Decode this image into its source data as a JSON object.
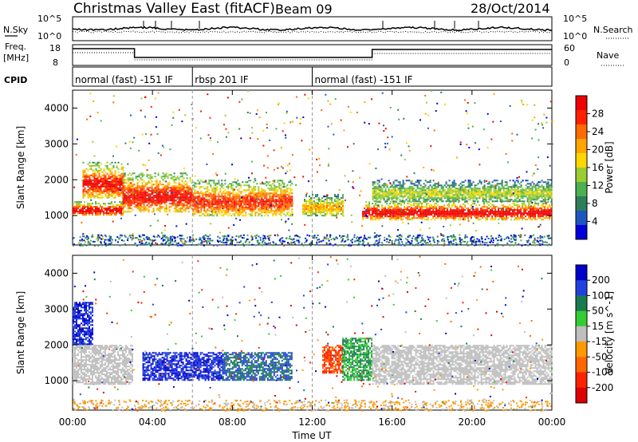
{
  "header": {
    "title": "Christmas Valley East (fitACF)",
    "beam": "Beam 09",
    "date": "28/Oct/2014"
  },
  "noise_panel": {
    "left_label": "N.Sky",
    "right_label": "N.Search",
    "left_ticks": [
      "10^5",
      "10^0"
    ],
    "right_ticks": [
      "10^5",
      "10^0"
    ]
  },
  "freq_panel": {
    "left_label_1": "Freq.",
    "left_label_2": "[MHz]",
    "right_label": "Nave",
    "left_ticks": [
      "18",
      "8"
    ],
    "right_ticks": [
      "60",
      "0"
    ]
  },
  "cpid_panel": {
    "label": "CPID",
    "segments": [
      {
        "label": "normal (fast) -151 IF",
        "start_hour": 0,
        "end_hour": 6
      },
      {
        "label": "rbsp 201 IF",
        "start_hour": 6,
        "end_hour": 12
      },
      {
        "label": "normal (fast) -151 IF",
        "start_hour": 12,
        "end_hour": 24
      }
    ]
  },
  "power_panel": {
    "ylabel": "Slant Range [km]",
    "yticks": [
      "4000",
      "3000",
      "2000",
      "1000"
    ],
    "colorbar_label": "Power [dB]",
    "colorbar_ticks": [
      "28",
      "24",
      "20",
      "16",
      "12",
      "8",
      "4"
    ],
    "colors": [
      "#0000dd",
      "#1f57c0",
      "#2e7d5a",
      "#4caf50",
      "#9acd32",
      "#ffd700",
      "#ffa500",
      "#ff6a00",
      "#ff2000",
      "#ee0000"
    ]
  },
  "velocity_panel": {
    "ylabel": "Slant Range [km]",
    "yticks": [
      "4000",
      "3000",
      "2000",
      "1000"
    ],
    "colorbar_label": "Velocity [m s^-1]",
    "colorbar_ticks": [
      "200",
      "100",
      "50",
      "15",
      "-15",
      "-50",
      "-100",
      "-200"
    ],
    "colors": [
      "#0000cc",
      "#2040e0",
      "#1a7a50",
      "#33cc33",
      "#bebebe",
      "#ff9900",
      "#ff6600",
      "#ff2200",
      "#dd0000"
    ]
  },
  "x_axis": {
    "label": "Time UT",
    "ticks": [
      "00:00",
      "04:00",
      "08:00",
      "12:00",
      "16:00",
      "20:00",
      "00:00"
    ]
  },
  "chart_data": {
    "type": "heatmap",
    "title": "Christmas Valley East (fitACF)",
    "xlabel": "Time UT",
    "ylabel": "Slant Range [km]",
    "xlim_hours": [
      0,
      24
    ],
    "ylim_km": [
      180,
      4500
    ],
    "power_bands": [
      {
        "start_hour": 0.0,
        "end_hour": 2.5,
        "range_km": [
          1000,
          1400
        ],
        "power_db": 28
      },
      {
        "start_hour": 0.5,
        "end_hour": 2.5,
        "range_km": [
          1500,
          2500
        ],
        "power_db": 26
      },
      {
        "start_hour": 2.5,
        "end_hour": 6.0,
        "range_km": [
          1100,
          2200
        ],
        "power_db": 26
      },
      {
        "start_hour": 6.0,
        "end_hour": 11.0,
        "range_km": [
          1000,
          2000
        ],
        "power_db": 24
      },
      {
        "start_hour": 11.5,
        "end_hour": 13.5,
        "range_km": [
          1000,
          1600
        ],
        "power_db": 18
      },
      {
        "start_hour": 14.5,
        "end_hour": 24.0,
        "range_km": [
          900,
          1400
        ],
        "power_db": 28
      },
      {
        "start_hour": 15.0,
        "end_hour": 24.0,
        "range_km": [
          1400,
          2000
        ],
        "power_db": 14
      }
    ],
    "velocity_bands": [
      {
        "start_hour": 0.0,
        "end_hour": 1.0,
        "range_km": [
          2000,
          3200
        ],
        "velocity": 200
      },
      {
        "start_hour": 0.0,
        "end_hour": 3.0,
        "range_km": [
          900,
          2000
        ],
        "velocity": 0
      },
      {
        "start_hour": 3.5,
        "end_hour": 7.5,
        "range_km": [
          1000,
          1800
        ],
        "velocity": 200
      },
      {
        "start_hour": 7.5,
        "end_hour": 11.0,
        "range_km": [
          1000,
          1800
        ],
        "velocity": 100
      },
      {
        "start_hour": 12.5,
        "end_hour": 13.5,
        "range_km": [
          1200,
          2000
        ],
        "velocity": -100
      },
      {
        "start_hour": 13.5,
        "end_hour": 15.0,
        "range_km": [
          1000,
          2200
        ],
        "velocity": 50
      },
      {
        "start_hour": 15.0,
        "end_hour": 24.0,
        "range_km": [
          900,
          2000
        ],
        "velocity": 0
      }
    ],
    "colorbars": {
      "power_db": [
        4,
        8,
        12,
        16,
        20,
        24,
        28
      ],
      "velocity_ms": [
        -200,
        -100,
        -50,
        -15,
        15,
        50,
        100,
        200
      ]
    }
  }
}
